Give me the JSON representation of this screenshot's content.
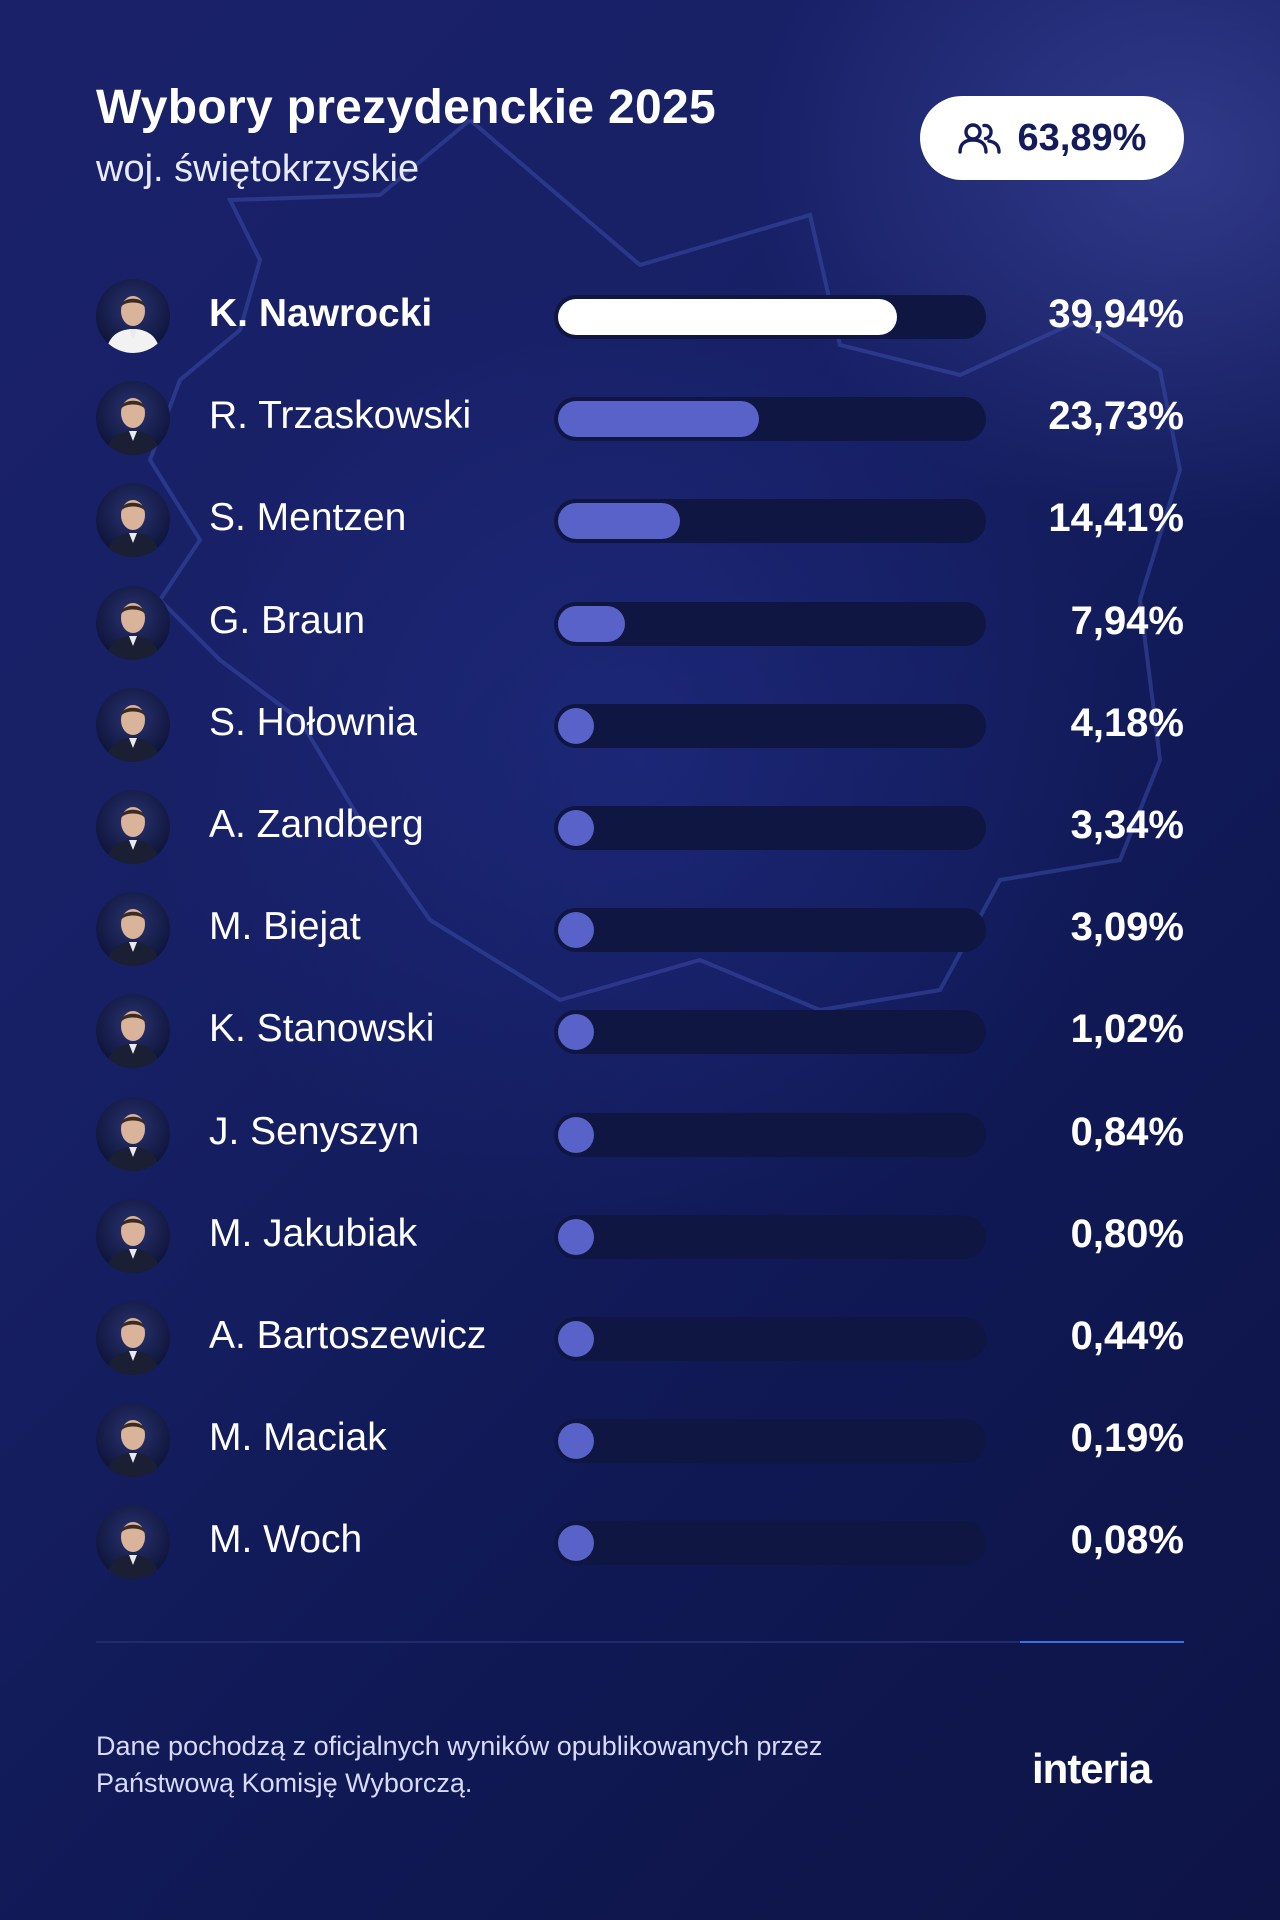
{
  "header": {
    "title": "Wybory prezydenckie 2025",
    "subtitle": "woj. świętokrzyskie",
    "turnout_icon": "people-icon",
    "turnout_value": "63,89%"
  },
  "colors": {
    "background": "#161f62",
    "lead_bar": "#ffffff",
    "bar": "#5862c9",
    "track": "#0f1642",
    "accent_line": "#3f6fe6"
  },
  "chart_data": {
    "type": "bar",
    "orientation": "horizontal",
    "categories": [
      "K. Nawrocki",
      "R. Trzaskowski",
      "S. Mentzen",
      "G. Braun",
      "S. Hołownia",
      "A. Zandberg",
      "M. Biejat",
      "K. Stanowski",
      "J. Senyszyn",
      "M. Jakubiak",
      "A. Bartoszewicz",
      "M. Maciak",
      "M. Woch"
    ],
    "values": [
      39.94,
      23.73,
      14.41,
      7.94,
      4.18,
      3.34,
      3.09,
      1.02,
      0.84,
      0.8,
      0.44,
      0.19,
      0.08
    ],
    "value_labels": [
      "39,94%",
      "23,73%",
      "14,41%",
      "7,94%",
      "4,18%",
      "3,34%",
      "3,09%",
      "1,02%",
      "0,84%",
      "0,80%",
      "0,44%",
      "0,19%",
      "0,08%"
    ],
    "xlim": [
      0,
      50
    ],
    "grid": false,
    "highlight_index": 0
  },
  "footer": {
    "source": "Dane pochodzą z oficjalnych wyników opublikowanych przez Państwową Komisję Wyborczą.",
    "logo": "interia"
  }
}
